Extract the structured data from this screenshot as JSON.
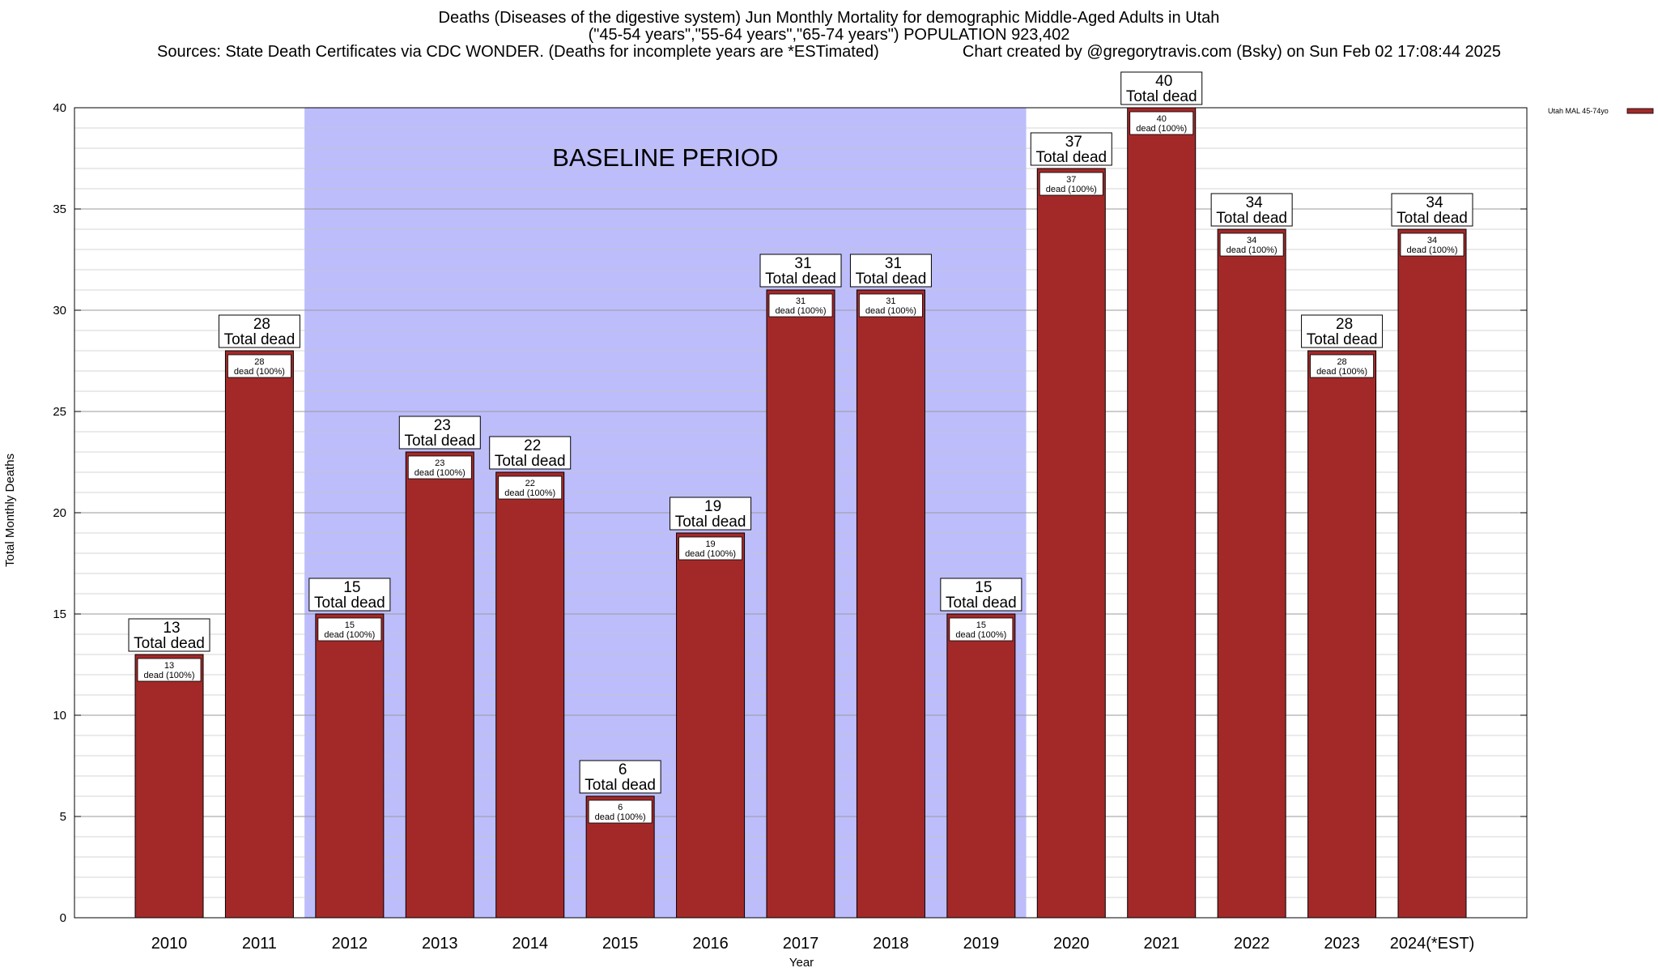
{
  "chart_data": {
    "type": "bar",
    "title": "Deaths (Diseases of the digestive system) Jun Monthly Mortality for demographic Middle-Aged Adults in Utah",
    "subtitle": "(\"45-54 years\",\"55-64 years\",\"65-74 years\") POPULATION 923,402",
    "source_note": "Sources: State Death Certificates via CDC WONDER. (Deaths for incomplete years are *ESTimated)",
    "credit": "Chart created by @gregorytravis.com (Bsky) on Sun Feb 02 17:08:44 2025",
    "xlabel": "Year",
    "ylabel": "Total Monthly Deaths",
    "ylim": [
      0,
      40
    ],
    "yticks": [
      0,
      5,
      10,
      15,
      20,
      25,
      30,
      35,
      40
    ],
    "categories": [
      "2010",
      "2011",
      "2012",
      "2013",
      "2014",
      "2015",
      "2016",
      "2017",
      "2018",
      "2019",
      "2020",
      "2021",
      "2022",
      "2023",
      "2024(*EST)"
    ],
    "series": [
      {
        "name": "Utah MAL 45-74yo",
        "color": "#a32929",
        "values": [
          13,
          28,
          15,
          23,
          22,
          6,
          19,
          31,
          31,
          15,
          37,
          40,
          34,
          28,
          34
        ]
      }
    ],
    "top_label_suffix": "Total dead",
    "inner_label_suffix": "dead (100%)",
    "baseline": {
      "label": "BASELINE PERIOD",
      "from": "2012",
      "to": "2019",
      "color": "#bdbdfc"
    },
    "grid": true,
    "legend_position": "top-right"
  }
}
